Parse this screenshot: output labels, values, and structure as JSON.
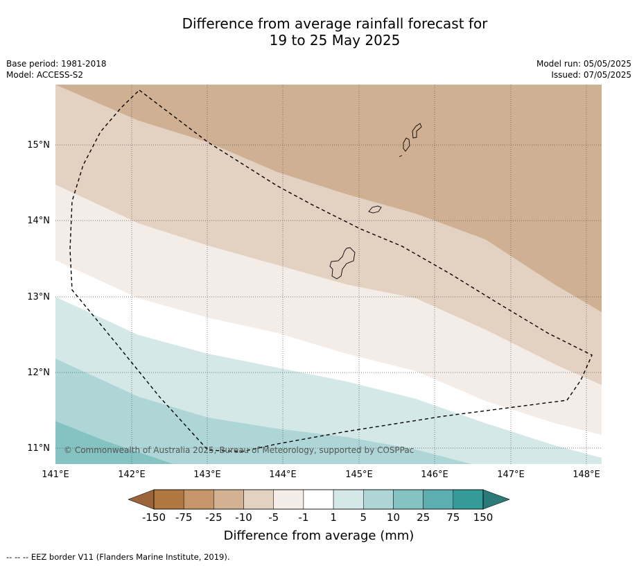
{
  "title": {
    "line1": "Difference from average rainfall forecast for",
    "line2": "19 to 25 May 2025"
  },
  "meta": {
    "base_period": "Base period: 1981-2018",
    "model": "Model: ACCESS-S2",
    "model_run": "Model run: 05/05/2025",
    "issued": "Issued: 07/05/2025"
  },
  "map": {
    "lat_labels": [
      "15°N",
      "14°N",
      "13°N",
      "12°N",
      "11°N"
    ],
    "lon_labels": [
      "141°E",
      "142°E",
      "143°E",
      "144°E",
      "145°E",
      "146°E",
      "147°E",
      "148°E"
    ],
    "copyright": "© Commonwealth of Australia 2025, Bureau of Meteorology, supported by COSPPac"
  },
  "colorbar": {
    "ticks": [
      "-150",
      "-75",
      "-25",
      "-10",
      "-5",
      "-1",
      "1",
      "5",
      "10",
      "25",
      "75",
      "150"
    ],
    "colors": {
      "below_min": "#9b643a",
      "bins": [
        "#b07840",
        "#c4966a",
        "#d3b294",
        "#e3d1c1",
        "#f4ece7",
        "#ffffff",
        "#d4e8e8",
        "#aed6d6",
        "#85c2c2",
        "#5daeae",
        "#359a9a"
      ],
      "above_max": "#2b7a78"
    },
    "title": "Difference from average (mm)"
  },
  "footnote": "--  --  -- EEZ border V11 (Flanders Marine Institute, 2019)."
}
